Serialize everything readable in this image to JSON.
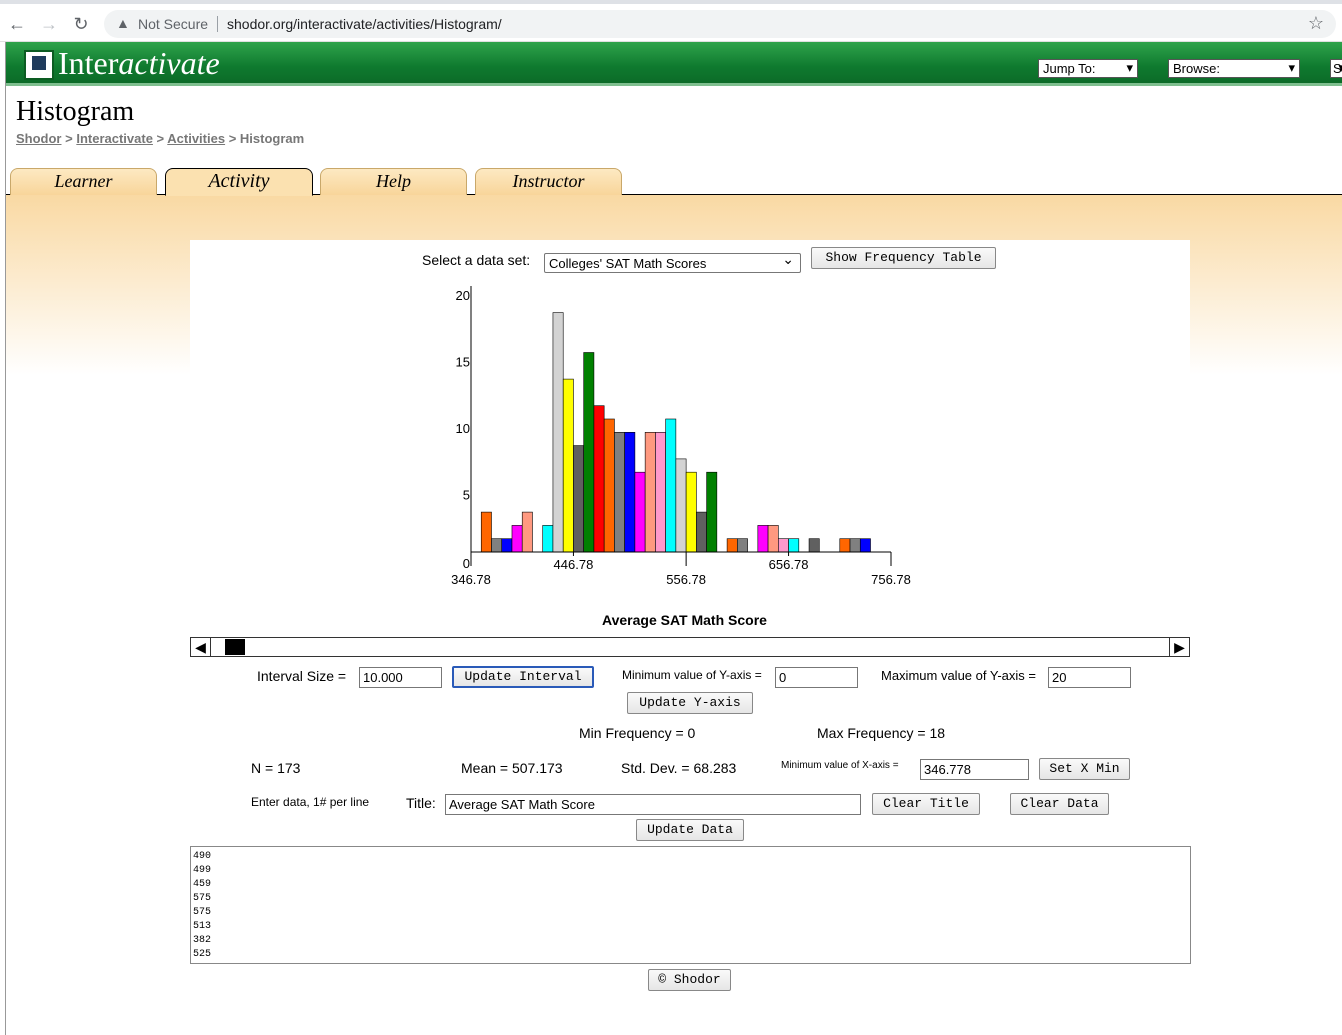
{
  "browser": {
    "security_label": "Not Secure",
    "url": "shodor.org/interactivate/activities/Histogram/"
  },
  "header": {
    "logo_prefix": "Inter",
    "logo_suffix": "activate",
    "jump_to": "Jump To:",
    "browse": "Browse:",
    "cut_select": "S"
  },
  "page": {
    "title": "Histogram",
    "breadcrumb": [
      "Shodor",
      "Interactivate",
      "Activities",
      "Histogram"
    ],
    "breadcrumb_sep": " > "
  },
  "tabs": [
    {
      "label": "Learner"
    },
    {
      "label": "Activity"
    },
    {
      "label": "Help"
    },
    {
      "label": "Instructor"
    }
  ],
  "controls": {
    "dataset_label": "Select a data set:",
    "dataset_value": "Colleges' SAT Math Scores",
    "show_freq_btn": "Show Frequency Table",
    "interval_label": "Interval Size =",
    "interval_value": "10.000",
    "update_interval_btn": "Update Interval",
    "ymin_label": "Minimum value of Y-axis =",
    "ymin_value": "0",
    "ymax_label": "Maximum value of Y-axis =",
    "ymax_value": "20",
    "update_y_btn": "Update Y-axis",
    "min_freq": "Min Frequency = 0",
    "max_freq": "Max Frequency = 18",
    "n": "N = 173",
    "mean": "Mean = 507.173",
    "std": "Std. Dev. = 68.283",
    "xmin_label": "Minimum value of X-axis =",
    "xmin_value": "346.778",
    "set_xmin_btn": "Set X Min",
    "enter_data_label": "Enter data, 1# per line",
    "title_label": "Title:",
    "title_value": "Average SAT Math Score",
    "clear_title_btn": "Clear Title",
    "clear_data_btn": "Clear Data",
    "update_data_btn": "Update Data",
    "data_lines": [
      "490",
      "499",
      "459",
      "575",
      "575",
      "513",
      "382",
      "525"
    ],
    "copyright_btn": "© Shodor"
  },
  "chart_data": {
    "type": "bar",
    "xlabel": "Average SAT Math Score",
    "ylim": [
      0,
      20
    ],
    "y_ticks": [
      "20",
      "15",
      "10",
      "5",
      "0"
    ],
    "x_ticks_upper": [
      "446.78",
      "656.78"
    ],
    "x_ticks_lower": [
      "346.78",
      "556.78",
      "756.78"
    ],
    "bin_start": 356.78,
    "bin_width": 10,
    "values": [
      3,
      1,
      1,
      2,
      3,
      0,
      2,
      18,
      13,
      8,
      15,
      11,
      10,
      9,
      9,
      6,
      9,
      9,
      10,
      7,
      6,
      3,
      6,
      0,
      1,
      1,
      0,
      2,
      2,
      1,
      1,
      0,
      1,
      0,
      0,
      1,
      1,
      1
    ],
    "colors": [
      "#ff6600",
      "#808080",
      "#0000ff",
      "#ff00ff",
      "#ff9980",
      "#00ffff",
      "#00ffff",
      "#d3d3d3",
      "#ffff00",
      "#606060",
      "#008000",
      "#ff0000",
      "#ff6600",
      "#808080",
      "#0000ff",
      "#ff00ff",
      "#ff9980",
      "#ff99cc",
      "#00ffff",
      "#d3d3d3",
      "#ffff00",
      "#606060",
      "#008000",
      "#ff0000",
      "#ff6600",
      "#808080",
      "#0000ff",
      "#ff00ff",
      "#ff9980",
      "#ff99cc",
      "#00ffff",
      "#d3d3d3",
      "#606060",
      "#008000",
      "#ff0000",
      "#ff6600",
      "#808080",
      "#0000ff"
    ]
  }
}
